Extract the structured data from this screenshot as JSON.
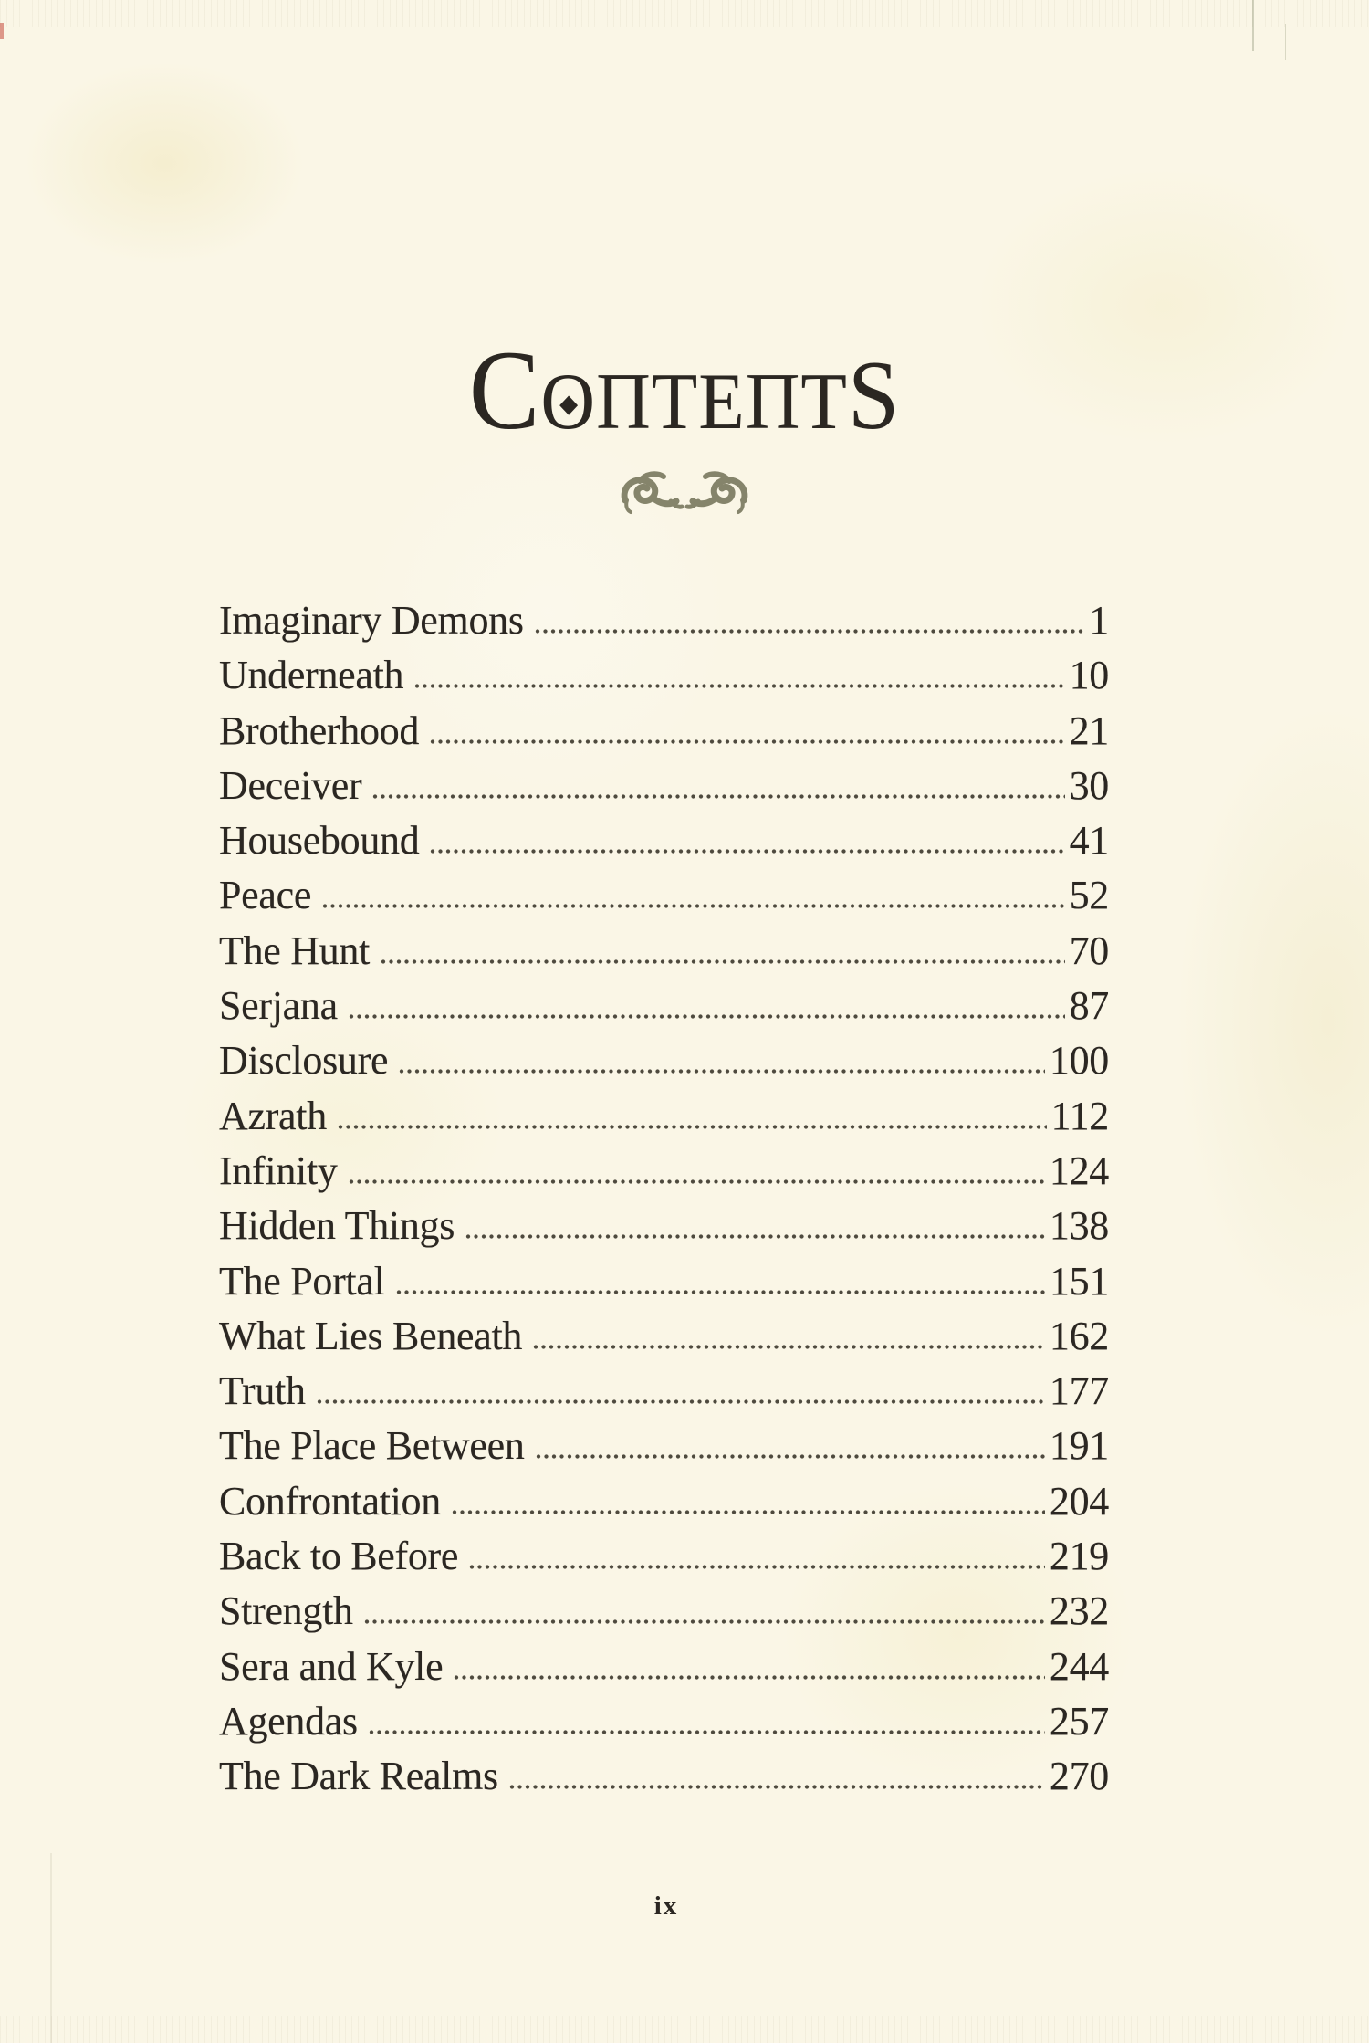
{
  "colors": {
    "paper": "#faf6e6",
    "ink": "#2b2722",
    "ornament": "#85846b",
    "leader_dot": "#4e4a3e"
  },
  "title": {
    "text": "Contents",
    "o_diamond": "diamond-dot",
    "display_letterforms": {
      "N": "Π"
    }
  },
  "ornament": {
    "icon": "facing-fleurons"
  },
  "toc": {
    "entries": [
      {
        "label": "Imaginary Demons",
        "page": "1"
      },
      {
        "label": "Underneath",
        "page": "10"
      },
      {
        "label": "Brotherhood",
        "page": "21"
      },
      {
        "label": "Deceiver",
        "page": "30"
      },
      {
        "label": "Housebound",
        "page": "41"
      },
      {
        "label": "Peace",
        "page": "52"
      },
      {
        "label": "The Hunt",
        "page": "70"
      },
      {
        "label": "Serjana",
        "page": "87"
      },
      {
        "label": "Disclosure",
        "page": "100"
      },
      {
        "label": "Azrath",
        "page": "112"
      },
      {
        "label": "Infinity",
        "page": "124"
      },
      {
        "label": "Hidden Things",
        "page": "138"
      },
      {
        "label": "The Portal",
        "page": "151"
      },
      {
        "label": "What Lies Beneath",
        "page": "162"
      },
      {
        "label": "Truth",
        "page": "177"
      },
      {
        "label": "The Place Between",
        "page": "191"
      },
      {
        "label": "Confrontation",
        "page": "204"
      },
      {
        "label": "Back to Before",
        "page": "219"
      },
      {
        "label": "Strength",
        "page": "232"
      },
      {
        "label": "Sera and Kyle",
        "page": "244"
      },
      {
        "label": "Agendas",
        "page": "257"
      },
      {
        "label": "The Dark Realms",
        "page": "270"
      }
    ]
  },
  "footer": {
    "page_number": "ix"
  }
}
